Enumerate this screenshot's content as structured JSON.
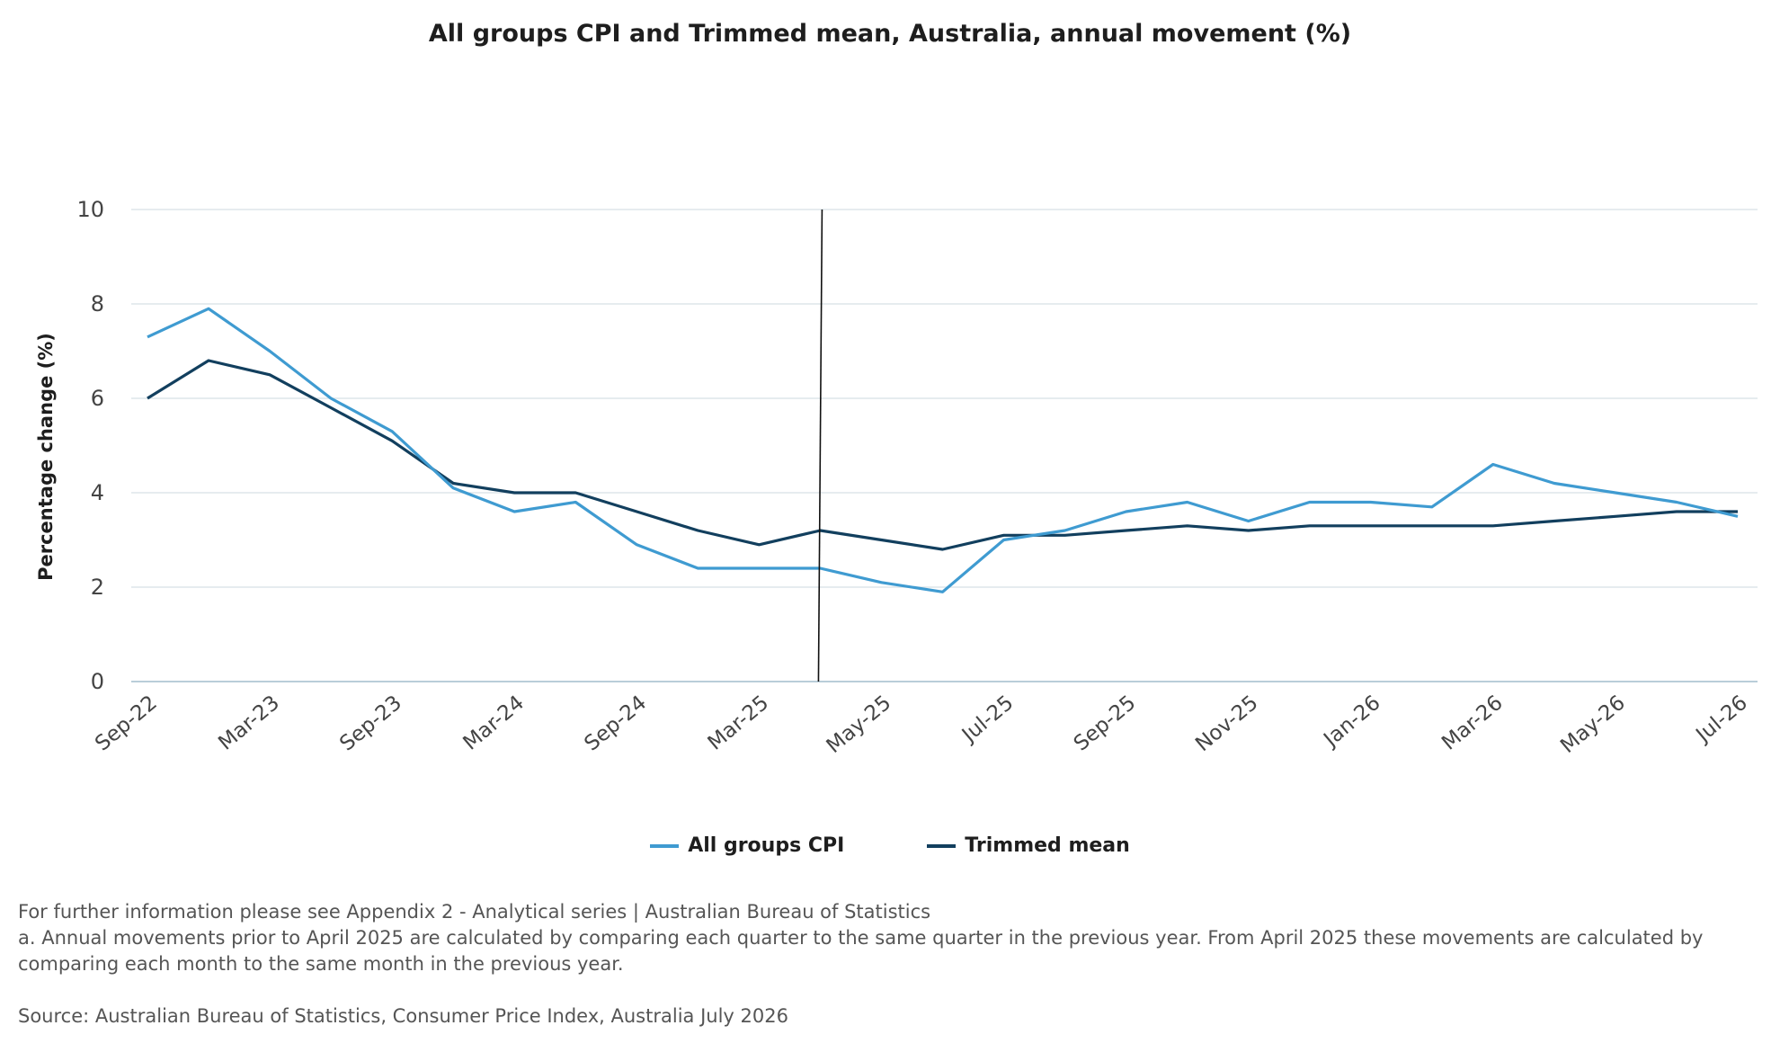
{
  "chart_data": {
    "type": "line",
    "title": "All groups CPI and Trimmed mean, Australia, annual movement (%)",
    "ylabel": "Percentage change (%)",
    "xlabel": "",
    "ylim": [
      0,
      10
    ],
    "yticks": [
      0,
      2,
      4,
      6,
      8,
      10
    ],
    "grid": true,
    "legend_position": "bottom",
    "x": [
      "Sep-22",
      "Dec-22",
      "Mar-23",
      "Jun-23",
      "Sep-23",
      "Dec-23",
      "Mar-24",
      "Jun-24",
      "Sep-24",
      "Dec-24",
      "Mar-25",
      "Apr-25",
      "May-25",
      "Jun-25",
      "Jul-25",
      "Aug-25",
      "Sep-25",
      "Oct-25",
      "Nov-25",
      "Dec-25",
      "Jan-26",
      "Feb-26",
      "Mar-26",
      "Apr-26",
      "May-26",
      "Jun-26",
      "Jul-26"
    ],
    "x_tick_labels": [
      "Sep-22",
      "Mar-23",
      "Sep-23",
      "Mar-24",
      "Sep-24",
      "Mar-25",
      "May-25",
      "Jul-25",
      "Sep-25",
      "Nov-25",
      "Jan-26",
      "Mar-26",
      "May-26",
      "Jul-26"
    ],
    "series": [
      {
        "name": "All groups CPI",
        "color": "#3f9bd1",
        "values": [
          7.3,
          7.9,
          7.0,
          6.0,
          5.3,
          4.1,
          3.6,
          3.8,
          2.9,
          2.4,
          2.4,
          2.4,
          2.1,
          1.9,
          3.0,
          3.2,
          3.6,
          3.8,
          3.4,
          3.8,
          3.8,
          3.7,
          4.6,
          4.2,
          4.0,
          3.8,
          3.5
        ]
      },
      {
        "name": "Trimmed mean",
        "color": "#123f5e",
        "values": [
          6.0,
          6.8,
          6.5,
          5.8,
          5.1,
          4.2,
          4.0,
          4.0,
          3.6,
          3.2,
          2.9,
          3.2,
          3.0,
          2.8,
          3.1,
          3.1,
          3.2,
          3.3,
          3.2,
          3.3,
          3.3,
          3.3,
          3.3,
          3.4,
          3.5,
          3.6,
          3.6
        ]
      }
    ],
    "annotation_vline_at": "Apr-25"
  },
  "notes": {
    "line1": "For further information please see Appendix 2 - Analytical series | Australian Bureau of Statistics",
    "line2": "a. Annual movements prior to April 2025 are calculated by comparing each quarter to the same quarter in the previous year.  From April 2025 these movements are calculated by comparing each month to the same month in the previous year.",
    "source": "Source: Australian Bureau of Statistics, Consumer Price Index, Australia July 2026"
  }
}
